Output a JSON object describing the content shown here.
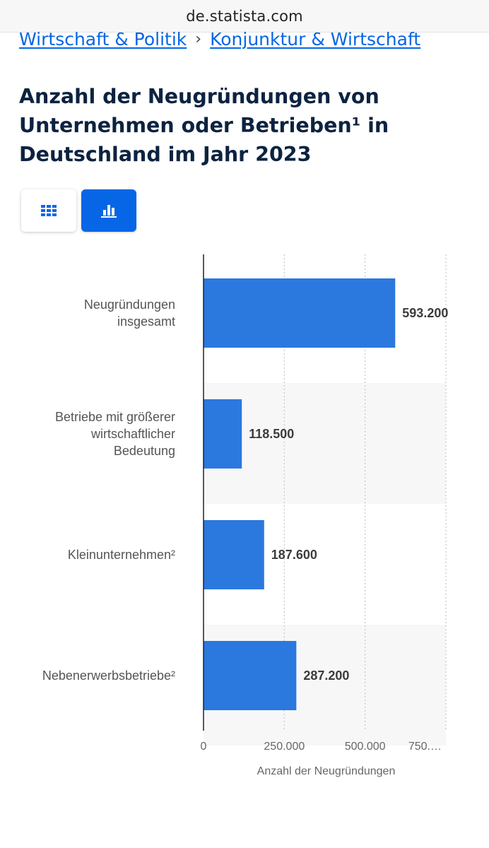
{
  "browser": {
    "url": "de.statista.com"
  },
  "breadcrumb": {
    "items": [
      "Wirtschaft & Politik",
      "Konjunktur & Wirtschaft"
    ],
    "separator": "›"
  },
  "title_lines": [
    "Anzahl der Neugründungen von",
    "Unternehmen oder Betrieben¹ in",
    "Deutschland im Jahr 2023"
  ],
  "view_toggle": {
    "table_icon": "grid-icon",
    "chart_icon": "bar-chart-icon",
    "active": "chart"
  },
  "colors": {
    "bar": "#2b78de",
    "accent": "#0666e6",
    "title": "#0c2340"
  },
  "chart_data": {
    "type": "bar",
    "orientation": "horizontal",
    "categories": [
      [
        "Neugründungen",
        "insgesamt"
      ],
      [
        "Betriebe mit größerer",
        "wirtschaftlicher",
        "Bedeutung"
      ],
      [
        "Kleinunternehmen²"
      ],
      [
        "Nebenerwerbsbetriebe²"
      ]
    ],
    "values": [
      593200,
      118500,
      187600,
      287200
    ],
    "value_labels": [
      "593.200",
      "118.500",
      "187.600",
      "287.200"
    ],
    "xlim": [
      0,
      750000
    ],
    "x_ticks": [
      0,
      250000,
      500000,
      750000
    ],
    "x_tick_labels": [
      "0",
      "250.000",
      "500.000",
      "750.…"
    ],
    "xlabel": "Anzahl der Neugründungen",
    "grid": true
  }
}
